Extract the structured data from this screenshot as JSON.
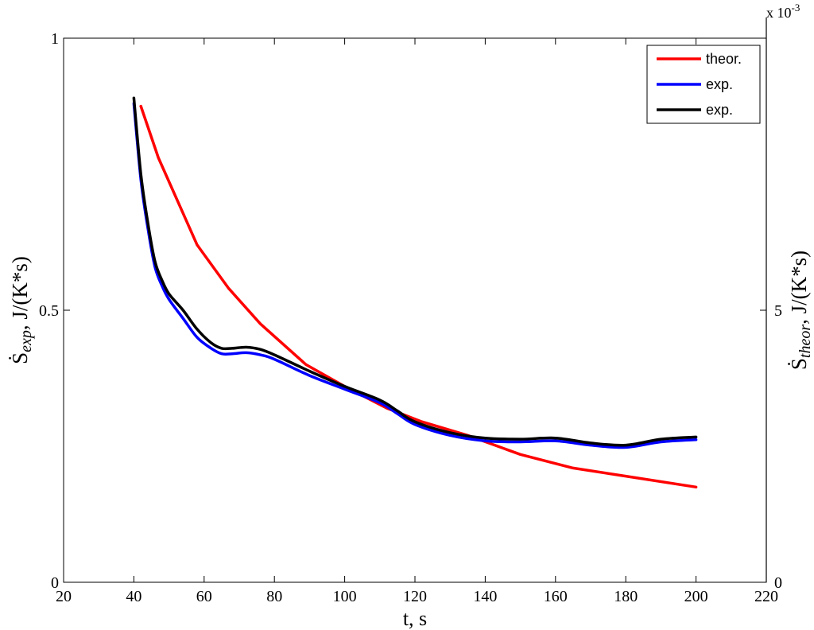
{
  "chart_data": {
    "type": "line",
    "xlabel": "t, s",
    "xlim": [
      20,
      220
    ],
    "xticks": [
      "20",
      "40",
      "60",
      "80",
      "100",
      "120",
      "140",
      "160",
      "180",
      "200",
      "220"
    ],
    "ylabel_left": {
      "symbol": "Ṡ",
      "sub": "exp",
      "unit": ", J/(K*s)"
    },
    "ylim_left": [
      0,
      1
    ],
    "yticks_left": [
      "0",
      "0.5",
      "1"
    ],
    "ylabel_right": {
      "symbol": "Ṡ",
      "sub": "theor",
      "unit": ", J/(K*s)"
    },
    "ylim_right": [
      0,
      10
    ],
    "yticks_right": [
      "0",
      "5"
    ],
    "right_multiplier": {
      "base": "x 10",
      "exp": "-3"
    },
    "grid": false,
    "legend_position": "top-right",
    "series": [
      {
        "name": "theor.",
        "color": "#ff0000",
        "axis": "right",
        "x": [
          42,
          47,
          58,
          67,
          76,
          89,
          100,
          112,
          122,
          135,
          150,
          165,
          180,
          200
        ],
        "y": [
          8.75,
          7.8,
          6.2,
          5.4,
          4.75,
          4.0,
          3.6,
          3.2,
          2.95,
          2.7,
          2.35,
          2.1,
          1.95,
          1.75
        ]
      },
      {
        "name": "exp.",
        "color": "#0000ff",
        "axis": "left",
        "x": [
          40,
          42,
          44,
          46,
          48,
          50,
          54,
          58,
          62,
          65,
          68,
          72,
          76,
          80,
          90,
          100,
          110,
          115,
          120,
          130,
          140,
          150,
          160,
          170,
          180,
          190,
          200
        ],
        "y": [
          0.88,
          0.74,
          0.65,
          0.58,
          0.545,
          0.52,
          0.485,
          0.45,
          0.43,
          0.42,
          0.42,
          0.422,
          0.418,
          0.41,
          0.38,
          0.355,
          0.33,
          0.31,
          0.29,
          0.27,
          0.26,
          0.258,
          0.26,
          0.252,
          0.248,
          0.258,
          0.262
        ]
      },
      {
        "name": "exp.",
        "color": "#000000",
        "axis": "left",
        "x": [
          40,
          42,
          44,
          46,
          48,
          50,
          54,
          58,
          62,
          65,
          68,
          72,
          76,
          80,
          90,
          100,
          110,
          115,
          120,
          130,
          140,
          150,
          160,
          170,
          180,
          190,
          200
        ],
        "y": [
          0.89,
          0.75,
          0.66,
          0.59,
          0.555,
          0.53,
          0.5,
          0.465,
          0.44,
          0.43,
          0.43,
          0.432,
          0.428,
          0.418,
          0.388,
          0.36,
          0.335,
          0.315,
          0.295,
          0.275,
          0.265,
          0.263,
          0.265,
          0.256,
          0.252,
          0.263,
          0.267
        ]
      }
    ]
  }
}
